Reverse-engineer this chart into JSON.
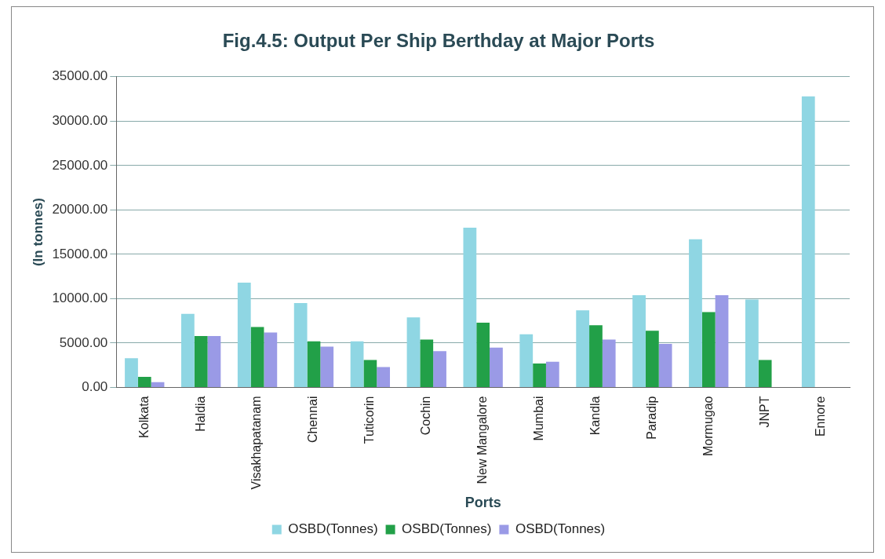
{
  "chart_data": {
    "type": "bar",
    "title": "Fig.4.5: Output Per Ship Berthday at Major Ports",
    "xlabel": "Ports",
    "ylabel": "(In tonnes)",
    "categories": [
      "Kolkata",
      "Haldia",
      "Visakhapatanam",
      "Chennai",
      "Tuticorin",
      "Cochin",
      "New Mangalore",
      "Mumbai",
      "Kandla",
      "Paradip",
      "Mormugao",
      "JNPT",
      "Ennore"
    ],
    "series": [
      {
        "name": "OSBD(Tonnes)",
        "color": "#8fd6e3",
        "values": [
          3300,
          8300,
          11800,
          9500,
          5200,
          7900,
          18000,
          6000,
          8700,
          10400,
          16700,
          9900,
          32800
        ]
      },
      {
        "name": "OSBD(Tonnes)",
        "color": "#22a048",
        "values": [
          1200,
          5800,
          6800,
          5200,
          3100,
          5400,
          7300,
          2700,
          7000,
          6400,
          8500,
          3100,
          null
        ]
      },
      {
        "name": "OSBD(Tonnes)",
        "color": "#9a9ae6",
        "values": [
          600,
          5800,
          6200,
          4600,
          2300,
          4100,
          4500,
          2900,
          5400,
          4900,
          10400,
          null,
          null
        ]
      }
    ],
    "ylim": [
      0,
      35000
    ],
    "yticks": [
      {
        "value": 0,
        "label": "0.00"
      },
      {
        "value": 5000,
        "label": "5000.00"
      },
      {
        "value": 10000,
        "label": "10000.00"
      },
      {
        "value": 15000,
        "label": "15000.00"
      },
      {
        "value": 20000,
        "label": "20000.00"
      },
      {
        "value": 25000,
        "label": "25000.00"
      },
      {
        "value": 30000,
        "label": "30000.00"
      },
      {
        "value": 35000,
        "label": "35000.00"
      }
    ],
    "grid": "y",
    "legend": "bottom"
  }
}
